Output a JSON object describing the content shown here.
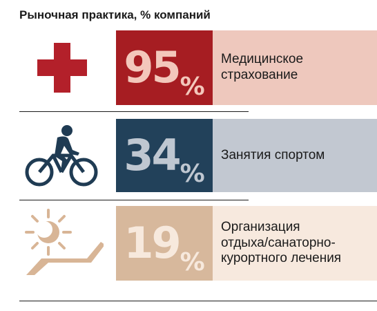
{
  "title": "Рыночная практика, % компаний",
  "chart_data": {
    "type": "table",
    "title": "Рыночная практика, % компаний",
    "rows": [
      {
        "value": 95,
        "value_label": "95",
        "unit": "%",
        "label_lines": [
          "Медицинское",
          "страхование"
        ],
        "icon": "medical-cross-icon",
        "box_color": "#a61d22",
        "text_color": "#f3c7bb",
        "label_bg": "#eec8bd"
      },
      {
        "value": 34,
        "value_label": "34",
        "unit": "%",
        "label_lines": [
          "Занятия спортом"
        ],
        "icon": "bicycle-icon",
        "box_color": "#22415a",
        "text_color": "#bfc7d1",
        "label_bg": "#c2c8d1"
      },
      {
        "value": 19,
        "value_label": "19",
        "unit": "%",
        "label_lines": [
          "Организация",
          "отдыха/санаторно-",
          "курортного лечения"
        ],
        "icon": "sun-lounger-icon",
        "box_color": "#d7b89c",
        "text_color": "#f7e9dd",
        "label_bg": "#f7e9de"
      }
    ]
  },
  "icon_colors": {
    "cross": "#b3202a",
    "bicycle": "#1f3b53",
    "sun": "#d8b596"
  }
}
